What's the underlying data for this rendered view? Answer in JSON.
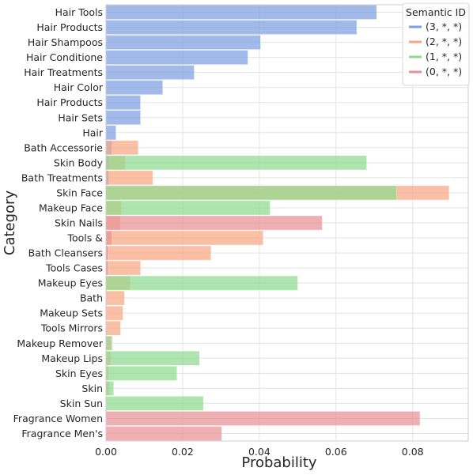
{
  "chart_data": {
    "type": "bar",
    "orientation": "horizontal",
    "title": "",
    "xlabel": "Probability",
    "ylabel": "Category",
    "xlim": [
      0,
      0.0945
    ],
    "xticks": [
      0.0,
      0.02,
      0.04,
      0.06,
      0.08
    ],
    "xtick_labels": [
      "0.00",
      "0.02",
      "0.04",
      "0.06",
      "0.08"
    ],
    "grid": true,
    "legend": {
      "title": "Semantic ID",
      "placement": "top-right"
    },
    "categories": [
      "Hair Tools",
      "Hair Products",
      "Hair Shampoos",
      "Hair Conditione",
      "Hair Treatments",
      "Hair Color",
      "Hair Products",
      "Hair Sets",
      "Hair",
      "Bath Accessorie",
      "Skin Body",
      "Bath Treatments",
      "Skin Face",
      "Makeup Face",
      "Skin Nails",
      "Tools &",
      "Bath Cleansers",
      "Tools Cases",
      "Makeup Eyes",
      "Bath",
      "Makeup Sets",
      "Tools Mirrors",
      "Makeup Remover",
      "Makeup Lips",
      "Skin Eyes",
      "Skin",
      "Skin Sun",
      "Fragrance Women",
      "Fragrance Men's"
    ],
    "series": [
      {
        "name": "(3, *, *)",
        "color": "#7da0e0",
        "values": [
          0.0706,
          0.0654,
          0.0403,
          0.037,
          0.023,
          0.0148,
          0.009,
          0.009,
          0.0026,
          0.0015,
          0.0008,
          0.0007,
          0,
          0,
          0,
          0,
          0,
          0,
          0,
          0,
          0,
          0,
          0,
          0,
          0,
          0,
          0,
          0,
          0
        ]
      },
      {
        "name": "(2, *, *)",
        "color": "#f7a883",
        "values": [
          0,
          0,
          0,
          0,
          0,
          0,
          0,
          0,
          0,
          0.0084,
          0.005,
          0.0122,
          0.0895,
          0.004,
          0.0037,
          0.041,
          0.0274,
          0.009,
          0.0063,
          0.0048,
          0.0044,
          0.0038,
          0.0017,
          0.0012,
          0.0007,
          0.0009,
          0,
          0,
          0
        ]
      },
      {
        "name": "(1, *, *)",
        "color": "#8fd98f",
        "values": [
          0,
          0,
          0,
          0,
          0,
          0,
          0,
          0,
          0,
          0,
          0.068,
          0,
          0.0758,
          0.0428,
          0,
          0,
          0,
          0,
          0.05,
          0,
          0,
          0,
          0.0014,
          0.0244,
          0.0185,
          0.002,
          0.0254,
          0,
          0
        ]
      },
      {
        "name": "(0, *, *)",
        "color": "#e99196",
        "values": [
          0,
          0,
          0,
          0,
          0,
          0,
          0,
          0,
          0,
          0,
          0,
          0,
          0,
          0,
          0.0564,
          0.0016,
          0.0006,
          0.0006,
          0,
          0,
          0,
          0,
          0,
          0,
          0,
          0,
          0,
          0.0819,
          0.0302
        ]
      }
    ]
  }
}
